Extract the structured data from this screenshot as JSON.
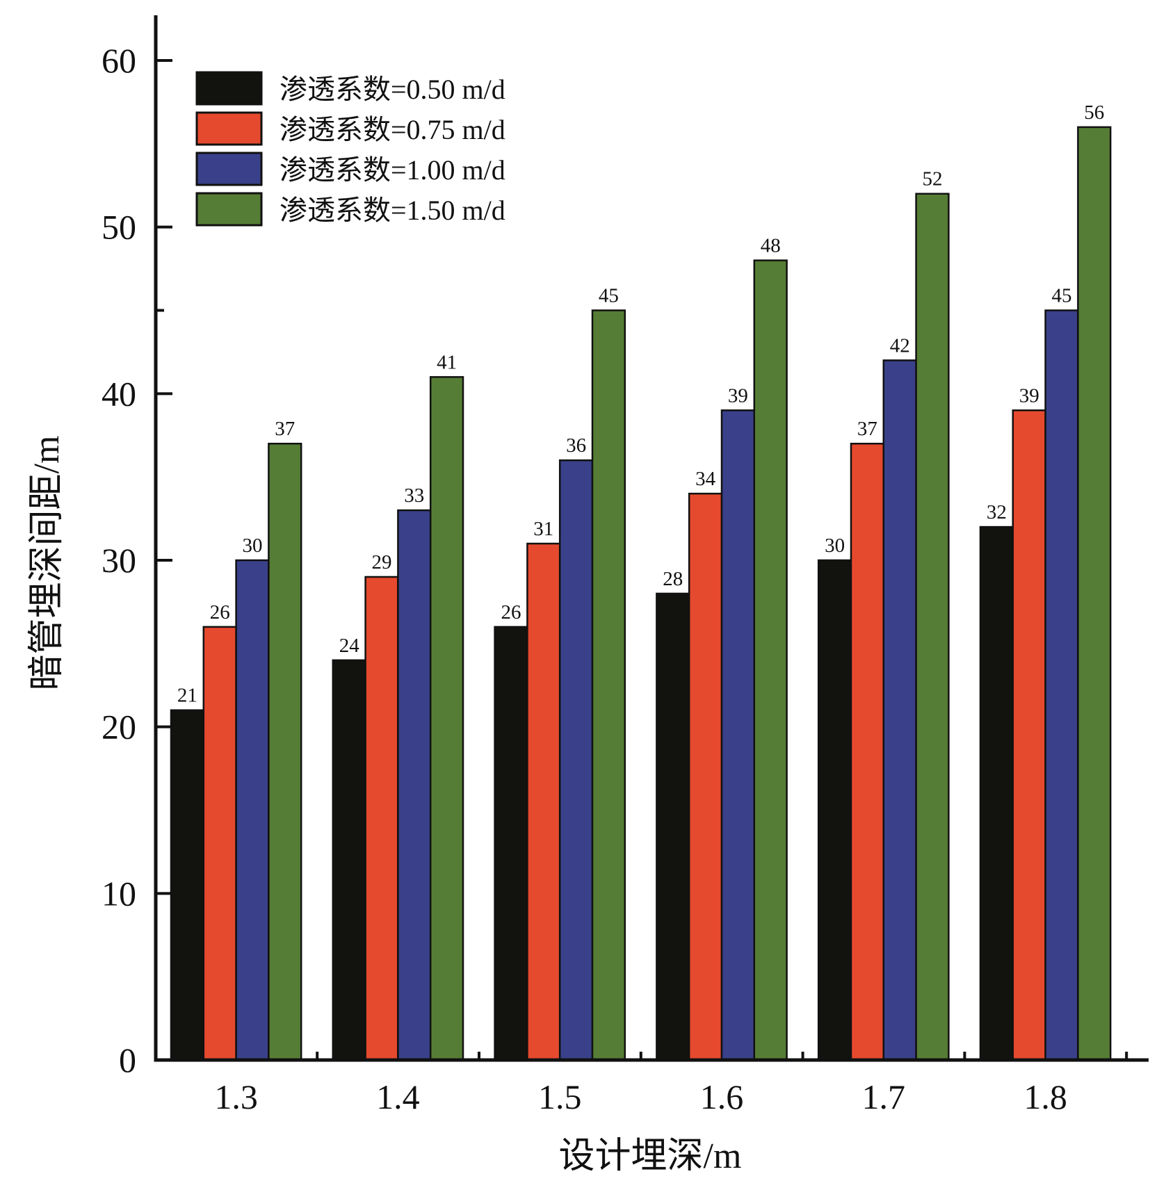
{
  "chart_data": {
    "type": "bar",
    "title": "",
    "xlabel": "设计埋深/m",
    "ylabel": "暗管埋深间距/m",
    "categories": [
      "1.3",
      "1.4",
      "1.5",
      "1.6",
      "1.7",
      "1.8"
    ],
    "ylim": [
      0,
      60
    ],
    "yticks": [
      0,
      10,
      20,
      30,
      40,
      50,
      60
    ],
    "yticks_minor_visible": [
      45
    ],
    "grid": false,
    "legend_position": "top-left",
    "data_labels": true,
    "series": [
      {
        "name": "渗透系数=0.50 m/d",
        "color": "#12130e",
        "values": [
          21,
          24,
          26,
          28,
          30,
          32
        ]
      },
      {
        "name": "渗透系数=0.75 m/d",
        "color": "#e64a2e",
        "values": [
          26,
          29,
          31,
          34,
          37,
          39
        ]
      },
      {
        "name": "渗透系数=1.00 m/d",
        "color": "#3a418a",
        "values": [
          30,
          33,
          36,
          39,
          42,
          45
        ]
      },
      {
        "name": "渗透系数=1.50 m/d",
        "color": "#567d35",
        "values": [
          37,
          41,
          45,
          48,
          52,
          56
        ]
      }
    ]
  }
}
